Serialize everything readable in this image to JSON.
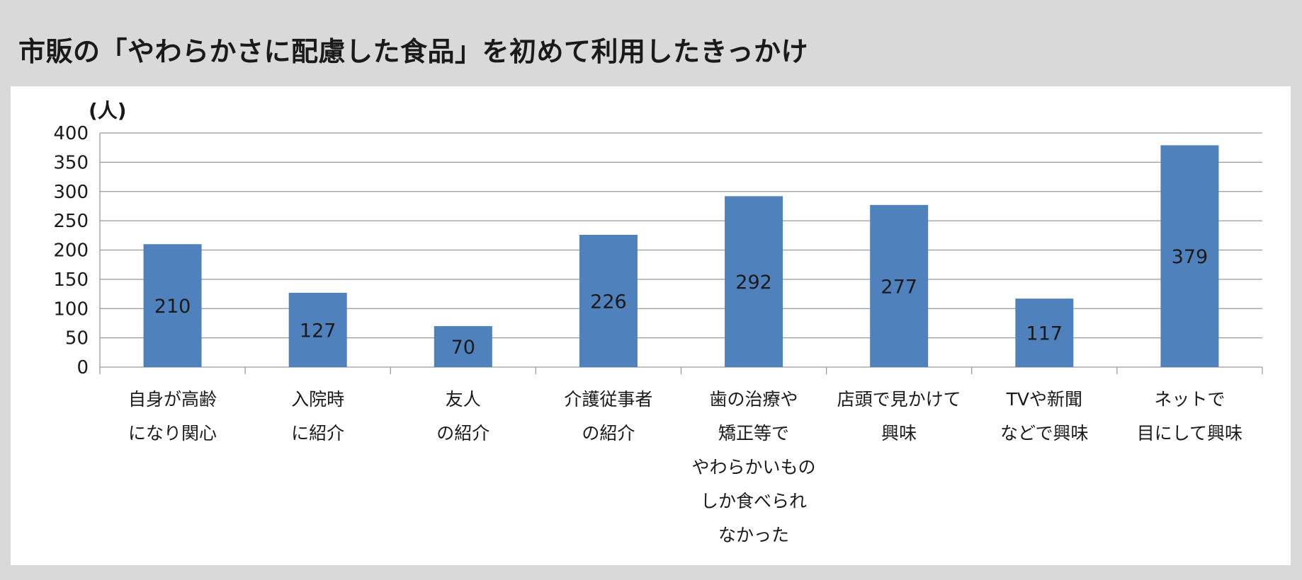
{
  "chart_data": {
    "type": "bar",
    "title": "市販の「やわらかさに配慮した食品」を初めて利用したきっかけ",
    "ylabel": "(人)",
    "xlabel": "",
    "ylim": [
      0,
      400
    ],
    "yticks": [
      0,
      50,
      100,
      150,
      200,
      250,
      300,
      350,
      400
    ],
    "grid": true,
    "legend": "none",
    "bar_color": "#4f81bd",
    "categories": [
      [
        "自身が高齢",
        "になり関心"
      ],
      [
        "入院時",
        "に紹介"
      ],
      [
        "友人",
        "の紹介"
      ],
      [
        "介護従事者",
        "の紹介"
      ],
      [
        "歯の治療や",
        "矯正等で",
        "やわらかいもの",
        "しか食べられ",
        "なかった"
      ],
      [
        "店頭で見かけて",
        "興味"
      ],
      [
        "TVや新聞",
        "などで興味"
      ],
      [
        "ネットで",
        "目にして興味"
      ]
    ],
    "values": [
      210,
      127,
      70,
      226,
      292,
      277,
      117,
      379
    ]
  }
}
